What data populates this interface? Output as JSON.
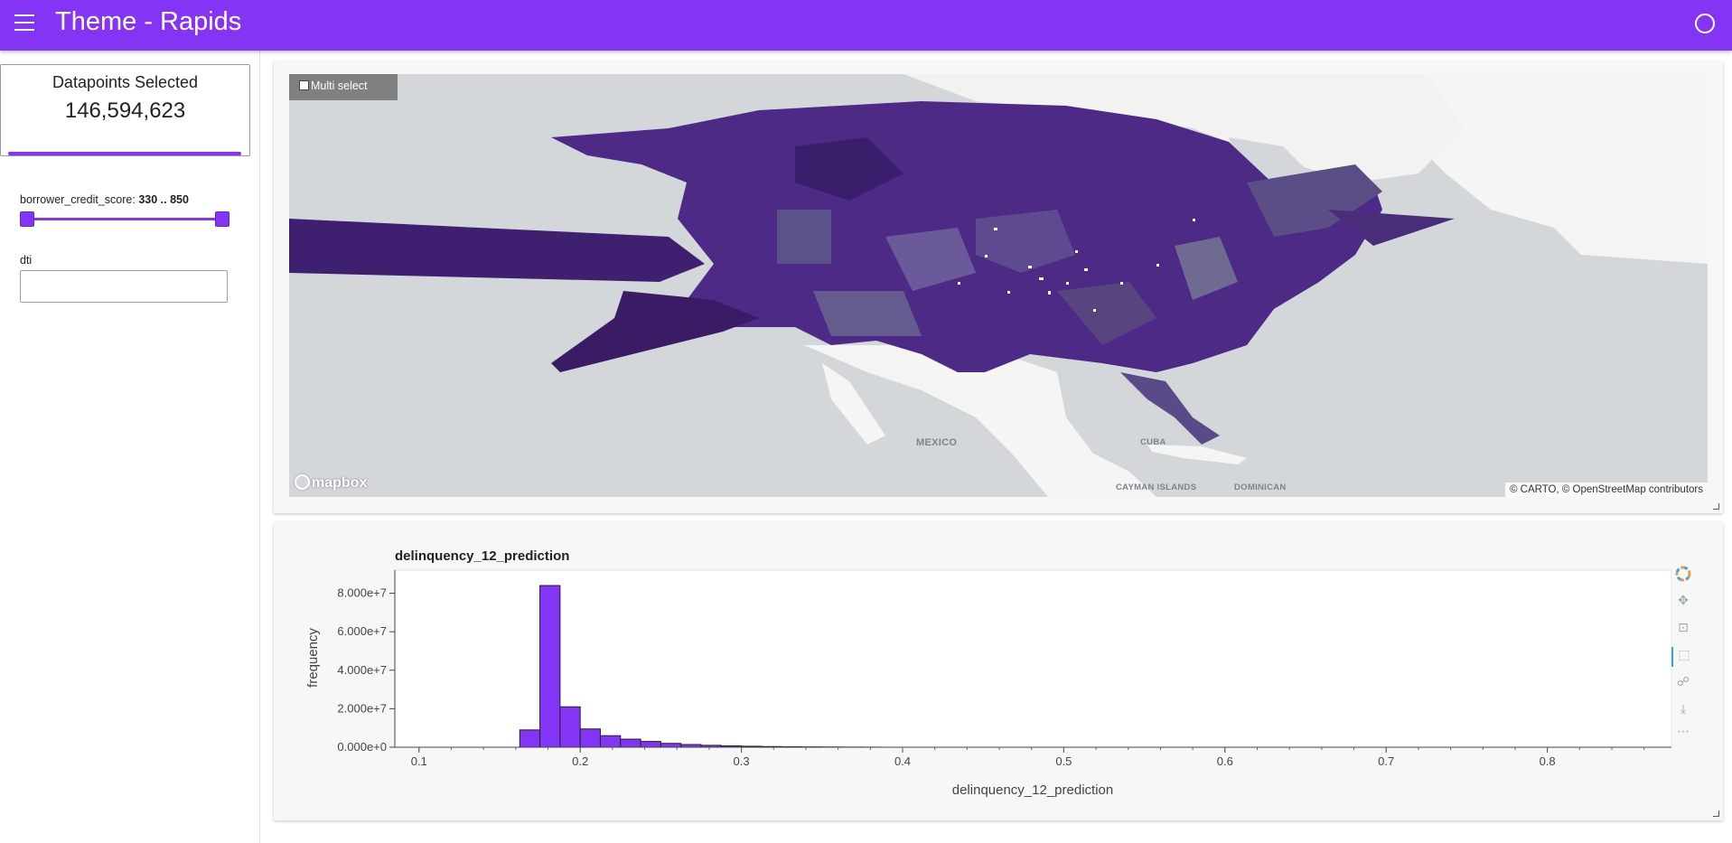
{
  "header": {
    "title": "Theme - Rapids",
    "bg_color": "#8434f5"
  },
  "sidebar": {
    "selected": {
      "title": "Datapoints Selected",
      "count": "146,594,623",
      "fraction": 1.0
    },
    "slider": {
      "label": "borrower_credit_score:",
      "value_text": "330 .. 850",
      "min": 330,
      "max": 850,
      "low": 330,
      "high": 850
    },
    "dti": {
      "label": "dti",
      "value": ""
    }
  },
  "map": {
    "multi_select_label": "Multi select",
    "labels": {
      "mexico": "MEXICO",
      "cayman": "CAYMAN ISLANDS",
      "dominican": "DOMINICAN",
      "cuba": "CUBA"
    },
    "attribution": "© CARTO, © OpenStreetMap contributors",
    "logo_text": "mapbox",
    "land_color": "#f5f5f4",
    "water_color": "#d3d7da",
    "fill_color": "#4c2a85"
  },
  "histogram": {
    "toolbar": [
      "bokeh-logo-icon",
      "pan-icon",
      "box-zoom-icon",
      "box-select-icon",
      "hover-icon",
      "save-icon",
      "more-icon"
    ]
  },
  "chart_data": {
    "type": "bar",
    "title": "delinquency_12_prediction",
    "xlabel": "delinquency_12_prediction",
    "ylabel": "frequency",
    "bar_color": "#8434f5",
    "bin_width": 0.0125,
    "bin_starts": [
      0.1625,
      0.175,
      0.1875,
      0.2,
      0.2125,
      0.225,
      0.2375,
      0.25,
      0.2625,
      0.275,
      0.2875,
      0.3,
      0.3125,
      0.325,
      0.3375,
      0.35,
      0.3625,
      0.375
    ],
    "values": [
      9000000,
      84000000,
      21000000,
      9500000,
      6000000,
      4200000,
      3000000,
      2000000,
      1400000,
      1000000,
      700000,
      500000,
      350000,
      250000,
      180000,
      120000,
      80000,
      50000
    ],
    "xlim": [
      0.085,
      0.877
    ],
    "ylim": [
      0,
      92000000
    ],
    "xticks": [
      0.1,
      0.2,
      0.3,
      0.4,
      0.5,
      0.6,
      0.7,
      0.8
    ],
    "xtick_labels": [
      "0.1",
      "0.2",
      "0.3",
      "0.4",
      "0.5",
      "0.6",
      "0.7",
      "0.8"
    ],
    "yticks": [
      0,
      20000000,
      40000000,
      60000000,
      80000000
    ],
    "ytick_labels": [
      "0.000e+0",
      "2.000e+7",
      "4.000e+7",
      "6.000e+7",
      "8.000e+7"
    ],
    "grid": false
  }
}
